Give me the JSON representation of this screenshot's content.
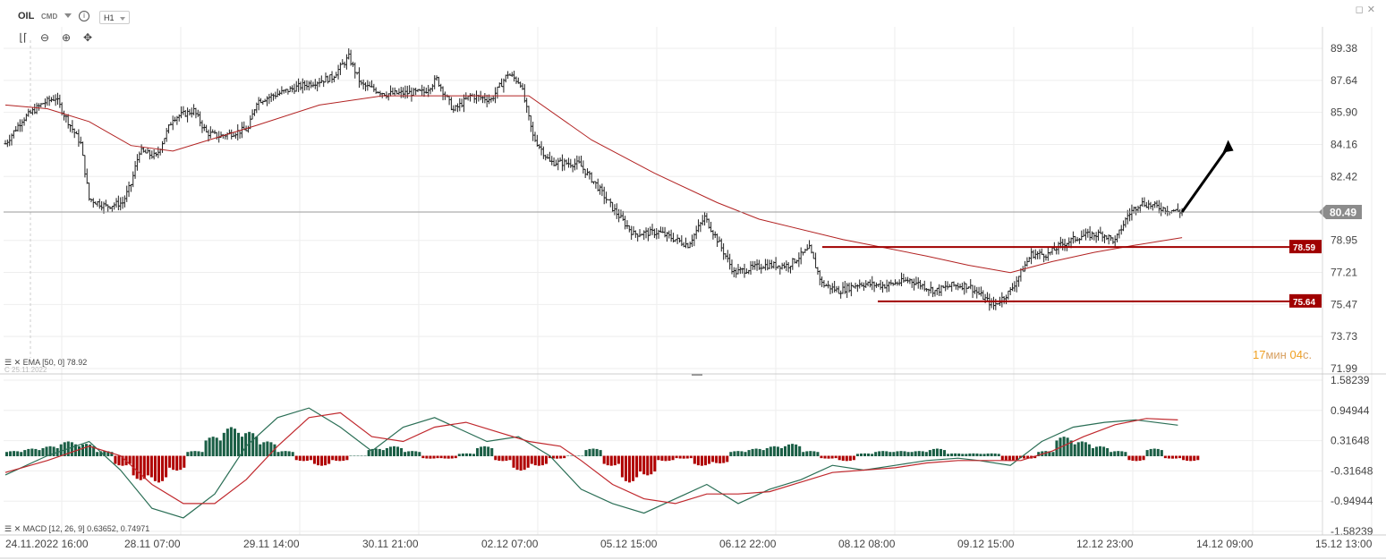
{
  "header": {
    "symbol": "OIL",
    "instrument_type": "CMD",
    "timeframe": "H1",
    "info_icon": "info-icon"
  },
  "toolbar": {
    "icons": [
      "candles-icon",
      "zoom-out-icon",
      "zoom-in-icon",
      "crosshair-icon"
    ]
  },
  "window": {
    "icons": [
      "restore-icon",
      "close-icon"
    ]
  },
  "indicators": {
    "ema_label": "EMA [50, 0] 78.92",
    "macd_label": "MACD [12, 26, 9] 0.63652, 0.74971",
    "hidden_date_label": "С 25.11.2022"
  },
  "countdown": {
    "minutes": "17",
    "min_unit": "мин",
    "seconds": "04",
    "sec_unit": "с."
  },
  "colors": {
    "ema_line": "#b22222",
    "level_line": "#a00000",
    "price_badge": "#8c8c8c",
    "hist_positive": "#1a5e45",
    "hist_negative": "#b00000",
    "macd_line": "#2a6e55",
    "signal_line": "#c0282d",
    "timer": "#f0a020"
  },
  "chart_data": [
    {
      "type": "ohlc-bars",
      "name": "OIL H1",
      "y_axis_ticks": [
        "89.38",
        "87.64",
        "85.90",
        "84.16",
        "82.42",
        "78.95",
        "77.21",
        "75.47",
        "73.73",
        "71.99"
      ],
      "ylim": [
        71.99,
        90.4
      ],
      "x_axis_ticks": [
        "24.11.2022 16:00",
        "28.11 07:00",
        "29.11 14:00",
        "30.11 21:00",
        "02.12 07:00",
        "05.12 15:00",
        "06.12 22:00",
        "08.12 08:00",
        "09.12 15:00",
        "12.12 23:00",
        "14.12 09:00",
        "15.12 13:00"
      ],
      "current_price": "80.49",
      "levels": [
        {
          "label": "78.59",
          "value": 78.59
        },
        {
          "label": "75.64",
          "value": 75.64
        }
      ],
      "price_path": [
        [
          0,
          84.2
        ],
        [
          8,
          85.5
        ],
        [
          18,
          86.4
        ],
        [
          24,
          86.7
        ],
        [
          28,
          85.8
        ],
        [
          36,
          84.2
        ],
        [
          40,
          81.2
        ],
        [
          48,
          80.8
        ],
        [
          56,
          81.0
        ],
        [
          60,
          82.0
        ],
        [
          64,
          83.8
        ],
        [
          72,
          83.5
        ],
        [
          80,
          85.6
        ],
        [
          90,
          86.0
        ],
        [
          96,
          84.8
        ],
        [
          102,
          84.6
        ],
        [
          116,
          85.0
        ],
        [
          120,
          86.5
        ],
        [
          140,
          87.3
        ],
        [
          156,
          87.8
        ],
        [
          164,
          88.9
        ],
        [
          170,
          87.4
        ],
        [
          182,
          86.9
        ],
        [
          200,
          87.0
        ],
        [
          206,
          87.7
        ],
        [
          214,
          86.0
        ],
        [
          222,
          86.8
        ],
        [
          232,
          86.6
        ],
        [
          240,
          88.0
        ],
        [
          246,
          87.5
        ],
        [
          252,
          84.6
        ],
        [
          260,
          83.2
        ],
        [
          274,
          83.1
        ],
        [
          282,
          82.0
        ],
        [
          290,
          80.7
        ],
        [
          300,
          79.3
        ],
        [
          312,
          79.4
        ],
        [
          326,
          78.7
        ],
        [
          334,
          80.2
        ],
        [
          340,
          79.0
        ],
        [
          348,
          77.2
        ],
        [
          362,
          77.6
        ],
        [
          374,
          77.6
        ],
        [
          384,
          78.5
        ],
        [
          390,
          76.6
        ],
        [
          398,
          76.2
        ],
        [
          408,
          76.6
        ],
        [
          420,
          76.5
        ],
        [
          432,
          76.8
        ],
        [
          444,
          76.2
        ],
        [
          452,
          76.5
        ],
        [
          460,
          76.5
        ],
        [
          472,
          75.4
        ],
        [
          480,
          76.2
        ],
        [
          490,
          78.2
        ],
        [
          498,
          78.2
        ],
        [
          504,
          78.7
        ],
        [
          514,
          79.2
        ],
        [
          524,
          79.3
        ],
        [
          530,
          78.9
        ],
        [
          536,
          80.3
        ],
        [
          542,
          81.0
        ],
        [
          556,
          80.6
        ],
        [
          562,
          80.5
        ]
      ],
      "bar_count": 563,
      "ema_path": [
        [
          0,
          86.3
        ],
        [
          20,
          86.1
        ],
        [
          40,
          85.4
        ],
        [
          60,
          84.1
        ],
        [
          80,
          83.8
        ],
        [
          100,
          84.5
        ],
        [
          120,
          85.2
        ],
        [
          150,
          86.3
        ],
        [
          180,
          86.8
        ],
        [
          220,
          86.8
        ],
        [
          250,
          86.8
        ],
        [
          280,
          84.4
        ],
        [
          310,
          82.6
        ],
        [
          340,
          81.0
        ],
        [
          360,
          80.1
        ],
        [
          400,
          79.0
        ],
        [
          440,
          78.1
        ],
        [
          460,
          77.6
        ],
        [
          480,
          77.2
        ],
        [
          500,
          77.8
        ],
        [
          520,
          78.3
        ],
        [
          540,
          78.7
        ],
        [
          562,
          79.1
        ]
      ],
      "projection_arrow": {
        "from": [
          562,
          80.49
        ],
        "to": [
          584,
          84.4
        ]
      },
      "xlabel": "",
      "ylabel": ""
    },
    {
      "type": "macd",
      "y_axis_ticks": [
        "1.58239",
        "0.94944",
        "0.31648",
        "-0.31648",
        "-0.94944",
        "-1.58239"
      ],
      "ylim": [
        -1.58239,
        1.58239
      ],
      "macd_path": [
        [
          0,
          -0.4
        ],
        [
          20,
          0.0
        ],
        [
          40,
          0.3
        ],
        [
          55,
          -0.3
        ],
        [
          70,
          -1.1
        ],
        [
          85,
          -1.3
        ],
        [
          100,
          -0.8
        ],
        [
          115,
          0.2
        ],
        [
          130,
          0.8
        ],
        [
          145,
          1.0
        ],
        [
          160,
          0.6
        ],
        [
          175,
          0.1
        ],
        [
          190,
          0.6
        ],
        [
          205,
          0.8
        ],
        [
          215,
          0.6
        ],
        [
          230,
          0.3
        ],
        [
          245,
          0.4
        ],
        [
          260,
          0.0
        ],
        [
          275,
          -0.7
        ],
        [
          290,
          -1.0
        ],
        [
          305,
          -1.2
        ],
        [
          320,
          -0.9
        ],
        [
          335,
          -0.6
        ],
        [
          350,
          -1.0
        ],
        [
          365,
          -0.7
        ],
        [
          380,
          -0.5
        ],
        [
          395,
          -0.2
        ],
        [
          410,
          -0.3
        ],
        [
          425,
          -0.2
        ],
        [
          440,
          -0.1
        ],
        [
          455,
          -0.05
        ],
        [
          465,
          -0.1
        ],
        [
          480,
          -0.2
        ],
        [
          495,
          0.3
        ],
        [
          510,
          0.6
        ],
        [
          525,
          0.7
        ],
        [
          540,
          0.75
        ],
        [
          560,
          0.64
        ]
      ],
      "signal_path": [
        [
          0,
          -0.35
        ],
        [
          20,
          -0.1
        ],
        [
          40,
          0.2
        ],
        [
          55,
          0.0
        ],
        [
          70,
          -0.6
        ],
        [
          85,
          -1.0
        ],
        [
          100,
          -1.0
        ],
        [
          115,
          -0.5
        ],
        [
          130,
          0.2
        ],
        [
          145,
          0.8
        ],
        [
          160,
          0.9
        ],
        [
          175,
          0.4
        ],
        [
          190,
          0.3
        ],
        [
          205,
          0.6
        ],
        [
          220,
          0.7
        ],
        [
          235,
          0.5
        ],
        [
          250,
          0.3
        ],
        [
          265,
          0.2
        ],
        [
          275,
          -0.1
        ],
        [
          290,
          -0.6
        ],
        [
          305,
          -0.9
        ],
        [
          320,
          -1.0
        ],
        [
          335,
          -0.8
        ],
        [
          350,
          -0.8
        ],
        [
          365,
          -0.75
        ],
        [
          380,
          -0.55
        ],
        [
          395,
          -0.35
        ],
        [
          410,
          -0.3
        ],
        [
          425,
          -0.25
        ],
        [
          440,
          -0.15
        ],
        [
          455,
          -0.1
        ],
        [
          470,
          -0.1
        ],
        [
          485,
          -0.1
        ],
        [
          500,
          0.1
        ],
        [
          515,
          0.4
        ],
        [
          530,
          0.65
        ],
        [
          545,
          0.78
        ],
        [
          560,
          0.75
        ]
      ],
      "histogram": [
        0.1,
        0.15,
        0.2,
        0.3,
        0.25,
        0.1,
        -0.2,
        -0.5,
        -0.55,
        -0.3,
        0.1,
        0.4,
        0.6,
        0.5,
        0.3,
        0.1,
        -0.1,
        -0.2,
        -0.1,
        0.0,
        0.15,
        0.2,
        0.1,
        -0.05,
        -0.05,
        0.05,
        0.2,
        -0.1,
        -0.3,
        -0.2,
        -0.05,
        0.0,
        0.15,
        -0.2,
        -0.55,
        -0.4,
        -0.1,
        -0.05,
        -0.2,
        -0.15,
        0.1,
        0.15,
        0.2,
        0.25,
        0.1,
        -0.05,
        -0.1,
        0.05,
        0.1,
        0.1,
        0.1,
        0.15,
        0.05,
        0.05,
        0.05,
        -0.1,
        -0.05,
        0.1,
        0.4,
        0.3,
        0.2,
        0.1,
        -0.1,
        0.15,
        -0.05,
        -0.1
      ]
    }
  ]
}
